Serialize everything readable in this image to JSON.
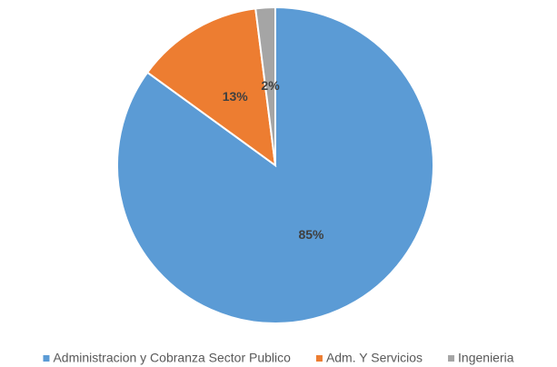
{
  "chart_data": {
    "type": "pie",
    "categories": [
      "Administracion y Cobranza Sector Publico",
      "Adm. Y Servicios",
      "Ingenieria"
    ],
    "values": [
      85,
      13,
      2
    ],
    "value_labels": [
      "85%",
      "13%",
      "2%"
    ],
    "colors": [
      "#5b9bd5",
      "#ed7d31",
      "#a5a5a5"
    ],
    "legend": "bottom"
  }
}
